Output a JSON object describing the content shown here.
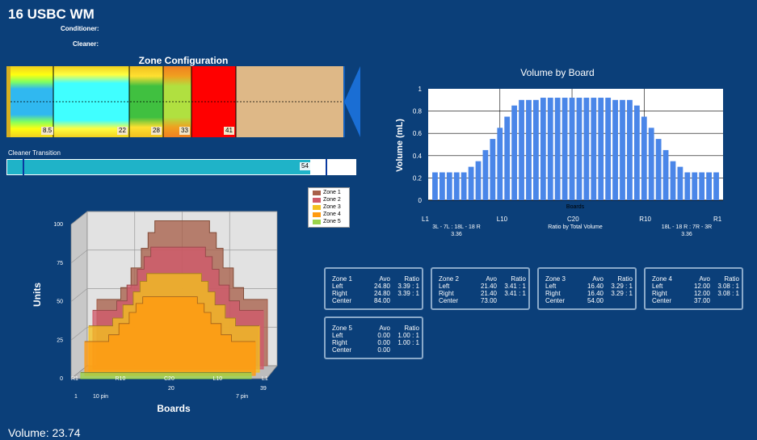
{
  "header": {
    "title": "16 USBC WM",
    "conditioner_label": "Conditioner:",
    "cleaner_label": "Cleaner:"
  },
  "zone_config": {
    "title": "Zone Configuration",
    "markers": [
      "8.5",
      "22",
      "28",
      "33",
      "41"
    ]
  },
  "cleaner_transition": {
    "label": "Cleaner Transition",
    "value": "54"
  },
  "chart_data": [
    {
      "type": "bar",
      "title": "Volume by Board",
      "xlabel": "Boards",
      "ylabel": "Volume (mL)",
      "ylim": [
        0,
        1
      ],
      "yticks": [
        "0",
        "0.2",
        "0.4",
        "0.6",
        "0.8",
        "1"
      ],
      "x_tick_labels": [
        "L1",
        "L10",
        "C20",
        "R10",
        "R1"
      ],
      "values": [
        0.25,
        0.25,
        0.25,
        0.25,
        0.25,
        0.3,
        0.35,
        0.45,
        0.55,
        0.65,
        0.75,
        0.85,
        0.9,
        0.9,
        0.9,
        0.92,
        0.92,
        0.92,
        0.92,
        0.92,
        0.92,
        0.92,
        0.92,
        0.92,
        0.92,
        0.9,
        0.9,
        0.9,
        0.85,
        0.75,
        0.65,
        0.55,
        0.45,
        0.35,
        0.3,
        0.25,
        0.25,
        0.25,
        0.25,
        0.25
      ],
      "footer": {
        "left_ratio": "3L - 7L : 18L - 18 R",
        "left_value": "3.36",
        "center": "Ratio by Total Volume",
        "right_ratio": "18L - 18 R : 7R - 3R",
        "right_value": "3.36"
      },
      "grid": true
    },
    {
      "type": "area",
      "title": "",
      "xlabel": "Boards",
      "ylabel": "Units",
      "ylim": [
        0,
        100
      ],
      "yticks": [
        "0",
        "25",
        "50",
        "75",
        "100"
      ],
      "x_tick_labels": [
        "R1",
        "R10",
        "C20",
        "L10",
        "L1"
      ],
      "x_sub_labels": [
        "1",
        "20",
        "39"
      ],
      "pin_labels": [
        "10 pin",
        "7 pin"
      ],
      "legend": [
        "Zone 1",
        "Zone 2",
        "Zone 3",
        "Zone 4",
        "Zone 5"
      ],
      "legend_position": "top-right",
      "series": [
        {
          "name": "Zone 1",
          "color": "#a8604a",
          "plateau": 94,
          "shoulder": 43
        },
        {
          "name": "Zone 2",
          "color": "#cf5a6a",
          "plateau": 79,
          "shoulder": 38
        },
        {
          "name": "Zone 3",
          "color": "#f4c020",
          "plateau": 64,
          "shoulder": 30
        },
        {
          "name": "Zone 4",
          "color": "#ff9a10",
          "plateau": 51,
          "shoulder": 22
        },
        {
          "name": "Zone 5",
          "color": "#9bd44a",
          "plateau": 4,
          "shoulder": 4
        }
      ]
    }
  ],
  "zone_stats": [
    {
      "name": "Zone 1",
      "avo_label": "Avo",
      "ratio_label": "Ratio",
      "left": {
        "label": "Left",
        "avo": "24.80",
        "ratio": "3.39 : 1"
      },
      "right": {
        "label": "Right",
        "avo": "24.80",
        "ratio": "3.39 : 1"
      },
      "center": {
        "label": "Center",
        "avo": "84.00"
      }
    },
    {
      "name": "Zone 2",
      "avo_label": "Avo",
      "ratio_label": "Ratio",
      "left": {
        "label": "Left",
        "avo": "21.40",
        "ratio": "3.41 : 1"
      },
      "right": {
        "label": "Right",
        "avo": "21.40",
        "ratio": "3.41 : 1"
      },
      "center": {
        "label": "Center",
        "avo": "73.00"
      }
    },
    {
      "name": "Zone 3",
      "avo_label": "Avo",
      "ratio_label": "Ratio",
      "left": {
        "label": "Left",
        "avo": "16.40",
        "ratio": "3.29 : 1"
      },
      "right": {
        "label": "Right",
        "avo": "16.40",
        "ratio": "3.29 : 1"
      },
      "center": {
        "label": "Center",
        "avo": "54.00"
      }
    },
    {
      "name": "Zone 4",
      "avo_label": "Avo",
      "ratio_label": "Ratio",
      "left": {
        "label": "Left",
        "avo": "12.00",
        "ratio": "3.08 : 1"
      },
      "right": {
        "label": "Right",
        "avo": "12.00",
        "ratio": "3.08 : 1"
      },
      "center": {
        "label": "Center",
        "avo": "37.00"
      }
    },
    {
      "name": "Zone 5",
      "avo_label": "Avo",
      "ratio_label": "Ratio",
      "left": {
        "label": "Left",
        "avo": "0.00",
        "ratio": "1.00 : 1"
      },
      "right": {
        "label": "Right",
        "avo": "0.00",
        "ratio": "1.00 : 1"
      },
      "center": {
        "label": "Center",
        "avo": "0.00"
      }
    }
  ],
  "footer": {
    "volume_label": "Volume: 23.74"
  }
}
